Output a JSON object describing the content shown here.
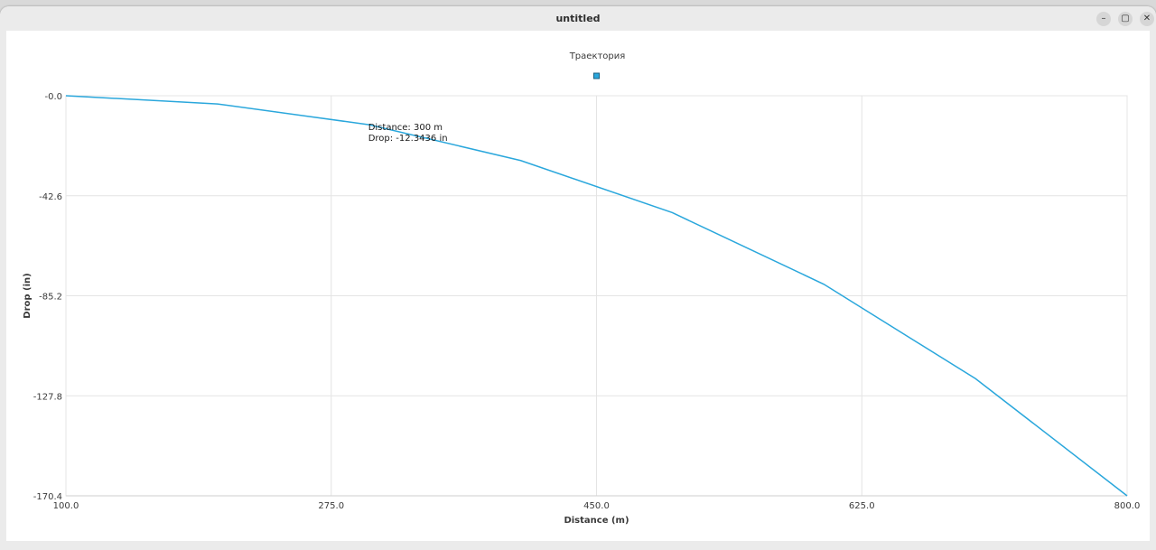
{
  "window": {
    "title": "untitled",
    "minimize_glyph": "–",
    "maximize_glyph": "▢",
    "close_glyph": "✕"
  },
  "chart_data": {
    "type": "line",
    "title": "Траектория",
    "xlabel": "Distance (m)",
    "ylabel": "Drop (in)",
    "xlim": [
      100.0,
      800.0
    ],
    "ylim": [
      -170.4,
      0.0
    ],
    "x_ticks": [
      "100.0",
      "275.0",
      "450.0",
      "625.0",
      "800.0"
    ],
    "x_tick_values": [
      100,
      275,
      450,
      625,
      800
    ],
    "y_ticks": [
      "-0.0",
      "-42.6",
      "-85.2",
      "-127.8",
      "-170.4"
    ],
    "y_tick_values": [
      0,
      -42.6,
      -85.2,
      -127.8,
      -170.4
    ],
    "grid": true,
    "legend": "top-center",
    "series": [
      {
        "color": "#2aa7dc",
        "x": [
          100,
          200,
          300,
          400,
          500,
          600,
          700,
          800
        ],
        "y": [
          0,
          -3.5,
          -12.3436,
          -27.6,
          -49.8,
          -80.3,
          -120.5,
          -170.4
        ]
      }
    ],
    "annotation": {
      "x": 300,
      "y": -12.3436,
      "lines": [
        "Distance: 300 m",
        "Drop: -12.3436 in"
      ]
    }
  }
}
